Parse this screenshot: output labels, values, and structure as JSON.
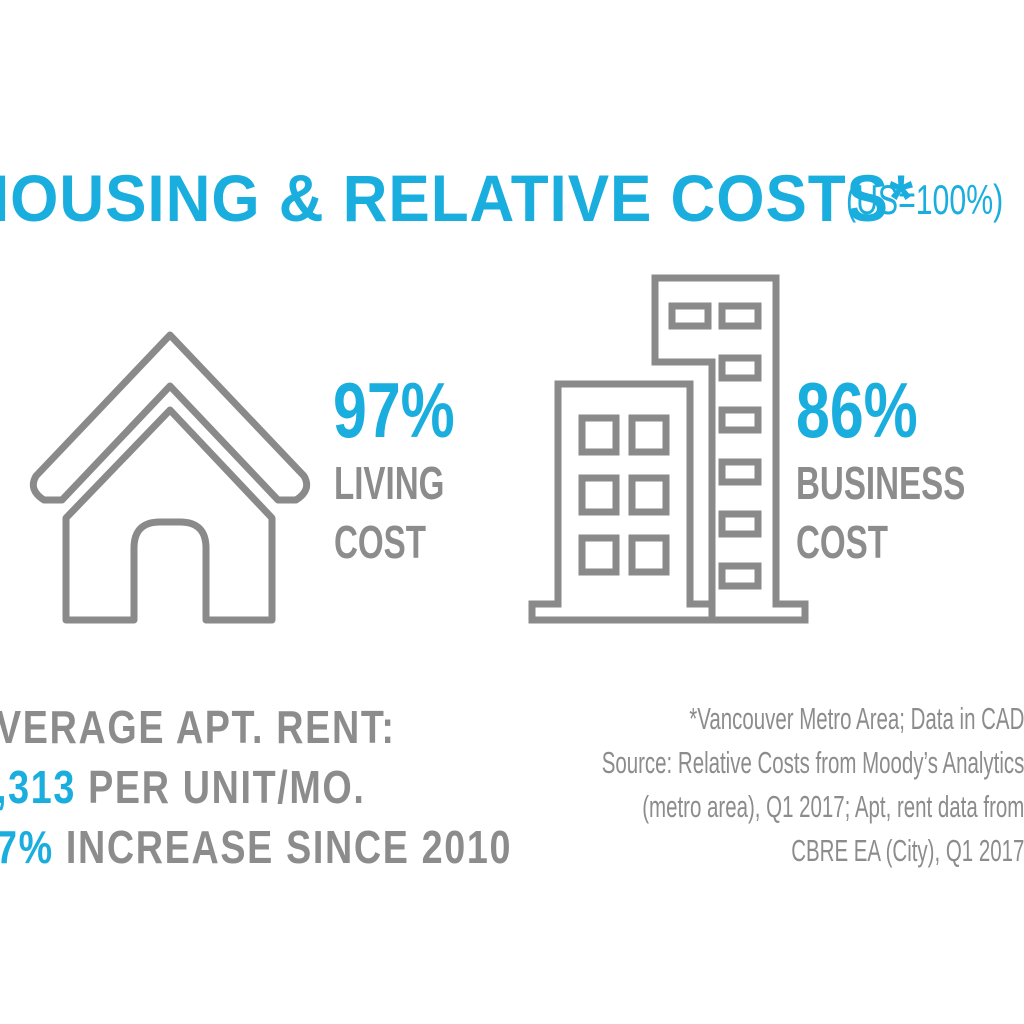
{
  "header": {
    "title": "IOUSING & RELATIVE COSTS*",
    "subtitle": "(US=100%)"
  },
  "living": {
    "percent": "97%",
    "label_line1": "LIVING",
    "label_line2": "COST",
    "icon": "house-icon"
  },
  "business": {
    "percent": "86%",
    "label_line1": "BUSINESS",
    "label_line2": "COST",
    "icon": "office-buildings-icon"
  },
  "rent": {
    "line1": "VERAGE APT. RENT:",
    "line2_accent": ",313",
    "line2_rest": " PER UNIT/MO.",
    "line3_accent": "7%",
    "line3_rest": " INCREASE SINCE 2010"
  },
  "footnote": {
    "line1": "*Vancouver Metro Area; Data in CAD",
    "line2": "Source: Relative Costs from Moody’s Analytics",
    "line3": "(metro area), Q1 2017; Apt, rent data from",
    "line4": "CBRE EA (City), Q1 2017"
  },
  "colors": {
    "accent": "#1aaedf",
    "gray": "#8c8c8c",
    "icon_stroke": "#8a8a8a"
  }
}
